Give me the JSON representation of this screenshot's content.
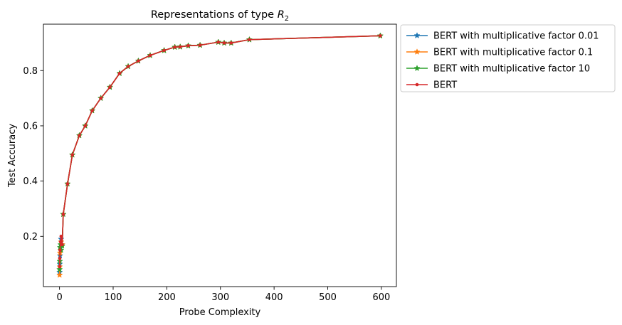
{
  "chart_data": {
    "type": "line",
    "title": "Representations of type R₂",
    "title_main": "Representations of type ",
    "title_italic": "R",
    "title_subscript": "2",
    "xlabel": "Probe Complexity",
    "ylabel": "Test Accuracy",
    "xlim": [
      -30,
      628
    ],
    "ylim": [
      0.018,
      0.968
    ],
    "xticks": [
      0,
      100,
      200,
      300,
      400,
      500,
      600
    ],
    "xtick_labels": [
      "0",
      "100",
      "200",
      "300",
      "400",
      "500",
      "600"
    ],
    "yticks": [
      0.2,
      0.4,
      0.6,
      0.8
    ],
    "ytick_labels": [
      "0.2",
      "0.4",
      "0.6",
      "0.8"
    ],
    "grid": false,
    "legend_position": "outside-upper-right",
    "series": [
      {
        "name": "BERT with multiplicative factor 0.01",
        "color": "#1f77b4",
        "marker": "star",
        "x": [
          0.2,
          0.5,
          1,
          2,
          3,
          5,
          7,
          15,
          24,
          37,
          48,
          61,
          77,
          94,
          112,
          128,
          147,
          169,
          195,
          215,
          225,
          240,
          262,
          296,
          307,
          320,
          354,
          598
        ],
        "y": [
          0.07,
          0.1,
          0.13,
          0.16,
          0.19,
          0.17,
          0.28,
          0.39,
          0.495,
          0.565,
          0.6,
          0.655,
          0.7,
          0.74,
          0.79,
          0.815,
          0.835,
          0.855,
          0.873,
          0.885,
          0.886,
          0.89,
          0.892,
          0.903,
          0.9,
          0.9,
          0.912,
          0.926
        ]
      },
      {
        "name": "BERT with multiplicative factor 0.1",
        "color": "#ff7f0e",
        "marker": "star",
        "x": [
          0.2,
          0.5,
          1,
          2,
          3,
          5,
          7,
          15,
          24,
          37,
          48,
          61,
          77,
          94,
          112,
          128,
          147,
          169,
          195,
          215,
          225,
          240,
          262,
          296,
          307,
          320,
          354,
          598
        ],
        "y": [
          0.06,
          0.09,
          0.14,
          0.15,
          0.18,
          0.17,
          0.28,
          0.39,
          0.495,
          0.565,
          0.6,
          0.655,
          0.7,
          0.74,
          0.79,
          0.815,
          0.835,
          0.855,
          0.873,
          0.885,
          0.886,
          0.89,
          0.892,
          0.903,
          0.9,
          0.9,
          0.912,
          0.926
        ]
      },
      {
        "name": "BERT with multiplicative factor 10",
        "color": "#2ca02c",
        "marker": "star",
        "x": [
          0.2,
          0.5,
          1,
          2,
          3,
          5,
          7,
          15,
          24,
          37,
          48,
          61,
          77,
          94,
          112,
          128,
          147,
          169,
          195,
          215,
          225,
          240,
          262,
          296,
          307,
          320,
          354,
          598
        ],
        "y": [
          0.08,
          0.11,
          0.16,
          0.17,
          0.15,
          0.165,
          0.28,
          0.39,
          0.495,
          0.565,
          0.6,
          0.655,
          0.7,
          0.74,
          0.79,
          0.815,
          0.835,
          0.855,
          0.873,
          0.885,
          0.886,
          0.89,
          0.892,
          0.903,
          0.9,
          0.9,
          0.912,
          0.926
        ]
      },
      {
        "name": "BERT",
        "color": "#d62728",
        "marker": "dot",
        "x": [
          0.2,
          0.5,
          1,
          2,
          3,
          5,
          7,
          15,
          24,
          37,
          48,
          61,
          77,
          94,
          112,
          128,
          147,
          169,
          195,
          215,
          225,
          240,
          262,
          296,
          307,
          320,
          354,
          598
        ],
        "y": [
          0.09,
          0.12,
          0.15,
          0.18,
          0.2,
          0.17,
          0.28,
          0.39,
          0.495,
          0.565,
          0.6,
          0.655,
          0.7,
          0.74,
          0.79,
          0.815,
          0.835,
          0.855,
          0.873,
          0.885,
          0.886,
          0.89,
          0.892,
          0.903,
          0.9,
          0.9,
          0.912,
          0.926
        ]
      }
    ]
  }
}
